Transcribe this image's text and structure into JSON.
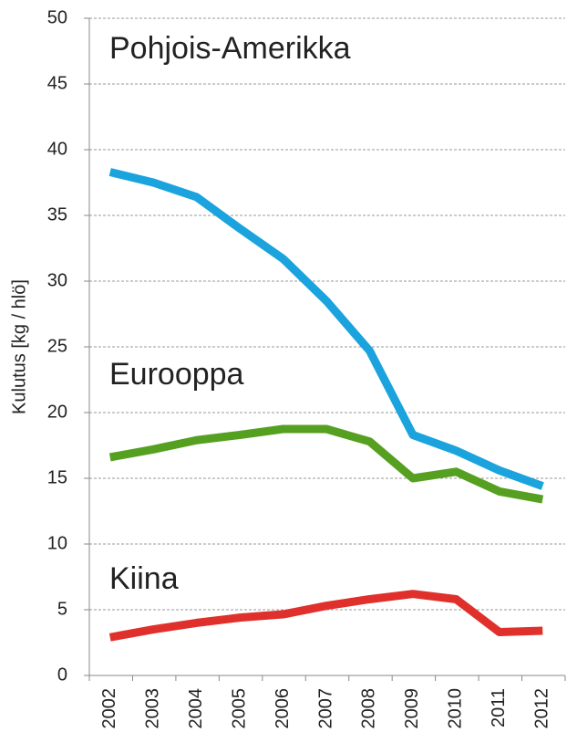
{
  "chart_data": {
    "type": "line",
    "y_label": "Kulutus [kg / hlö]",
    "categories": [
      "2002",
      "2003",
      "2004",
      "2005",
      "2006",
      "2007",
      "2008",
      "2009",
      "2010",
      "2011",
      "2012"
    ],
    "series": [
      {
        "name": "Pohjois-Amerikka",
        "color": "#1aa3dc",
        "values": [
          38.3,
          37.5,
          36.4,
          34.0,
          31.7,
          28.5,
          24.7,
          18.3,
          17.1,
          15.6,
          14.4
        ]
      },
      {
        "name": "Eurooppa",
        "color": "#56a021",
        "values": [
          16.6,
          17.2,
          17.9,
          18.3,
          18.75,
          18.75,
          17.8,
          15.0,
          15.5,
          14.0,
          13.4
        ]
      },
      {
        "name": "Kiina",
        "color": "#e0302c",
        "values": [
          2.9,
          3.5,
          4.0,
          4.4,
          4.65,
          5.3,
          5.8,
          6.2,
          5.8,
          3.3,
          3.4
        ]
      }
    ],
    "ylim": [
      0,
      50
    ],
    "yticks": [
      0,
      5,
      10,
      15,
      20,
      25,
      30,
      35,
      40,
      45,
      50
    ],
    "grid": true
  }
}
